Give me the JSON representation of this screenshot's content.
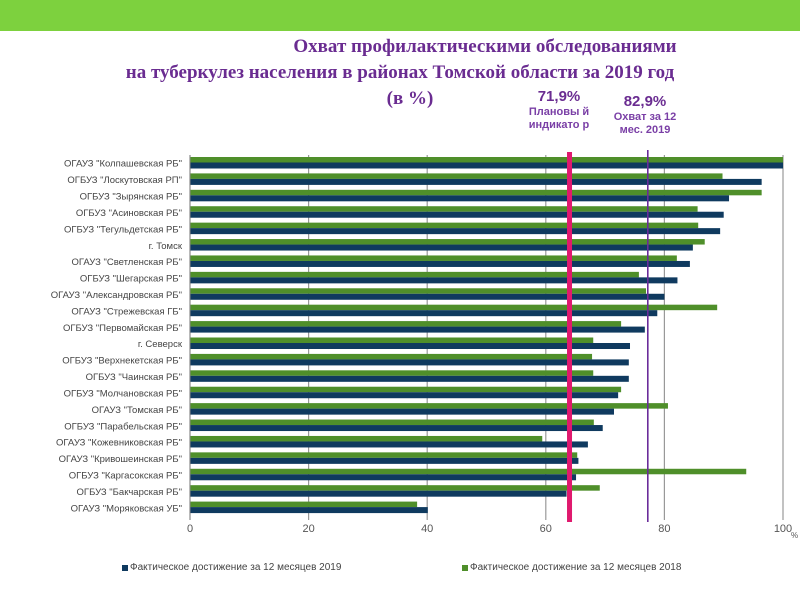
{
  "title_lines": [
    "Охват профилактическими обследованиями",
    "на туберкулез населения  в  районах  Томской области за  2019 год",
    "(в %)"
  ],
  "annotations": [
    {
      "value": "71,9%",
      "text": "Плановы й индикато р"
    },
    {
      "value": "82,9%",
      "text": "Охват  за 12 мес. 2019"
    }
  ],
  "colors": {
    "band": "#7dd13e",
    "s2019": "#0f3a5f",
    "s2018": "#4f8f2a",
    "plan": "#e0196e",
    "cover": "#6a2c9a"
  },
  "chart_data": {
    "type": "bar",
    "orientation": "horizontal",
    "categories": [
      "ОГАУЗ \"Колпашевская РБ\"",
      "ОГБУЗ \"Лоскутовская РП\"",
      "ОГБУЗ \"Зырянская РБ\"",
      "ОГБУЗ \"Асиновская РБ\"",
      "ОГБУЗ \"Тегульдетская РБ\"",
      "г. Томск",
      "ОГАУЗ \"Светленская РБ\"",
      "ОГБУЗ \"Шегарская РБ\"",
      "ОГАУЗ \"Александровская РБ\"",
      "ОГАУЗ \"Стрежевская ГБ\"",
      "ОГБУЗ \"Первомайская РБ\"",
      "г. Северск",
      "ОГБУЗ \"Верхнекетская РБ\"",
      "ОГБУЗ \"Чаинская РБ\"",
      "ОГБУЗ \"Молчановская РБ\"",
      "ОГАУЗ \"Томская РБ\"",
      "ОГБУЗ \"Парабельская РБ\"",
      "ОГАУЗ \"Кожевниковская РБ\"",
      "ОГАУЗ \"Кривошеинская РБ\"",
      "ОГБУЗ \"Каргасокская РБ\"",
      "ОГБУЗ \"Бакчарская РБ\"",
      "ОГАУЗ \"Моряковская УБ\""
    ],
    "series": [
      {
        "name": "Фактическое достижение за 12 месяцев 2019",
        "values": [
          100,
          96.4,
          90.9,
          90,
          89.4,
          84.8,
          84.3,
          82.2,
          80,
          78.8,
          76.7,
          74.2,
          74,
          74,
          72.2,
          71.5,
          69.6,
          67.1,
          65.5,
          65.1,
          63.5,
          40.1
        ]
      },
      {
        "name": "Фактическое достижение за 12 месяцев 2018",
        "values": [
          100,
          89.8,
          96.4,
          85.6,
          85.7,
          86.8,
          82.1,
          75.7,
          76.9,
          88.9,
          72.7,
          68,
          67.8,
          68,
          72.7,
          80.6,
          68.1,
          59.4,
          65.3,
          93.8,
          69.1,
          38.3
        ]
      }
    ],
    "reference_lines": [
      {
        "label": "71,9%",
        "drawn_at": 64
      },
      {
        "label": "82,9%",
        "drawn_at": 77.2
      }
    ],
    "xticks": [
      "0",
      "20",
      "40",
      "60",
      "80",
      "100"
    ],
    "xlim": [
      0,
      100
    ],
    "xunit": "%",
    "grid": true,
    "legend": "bottom"
  }
}
